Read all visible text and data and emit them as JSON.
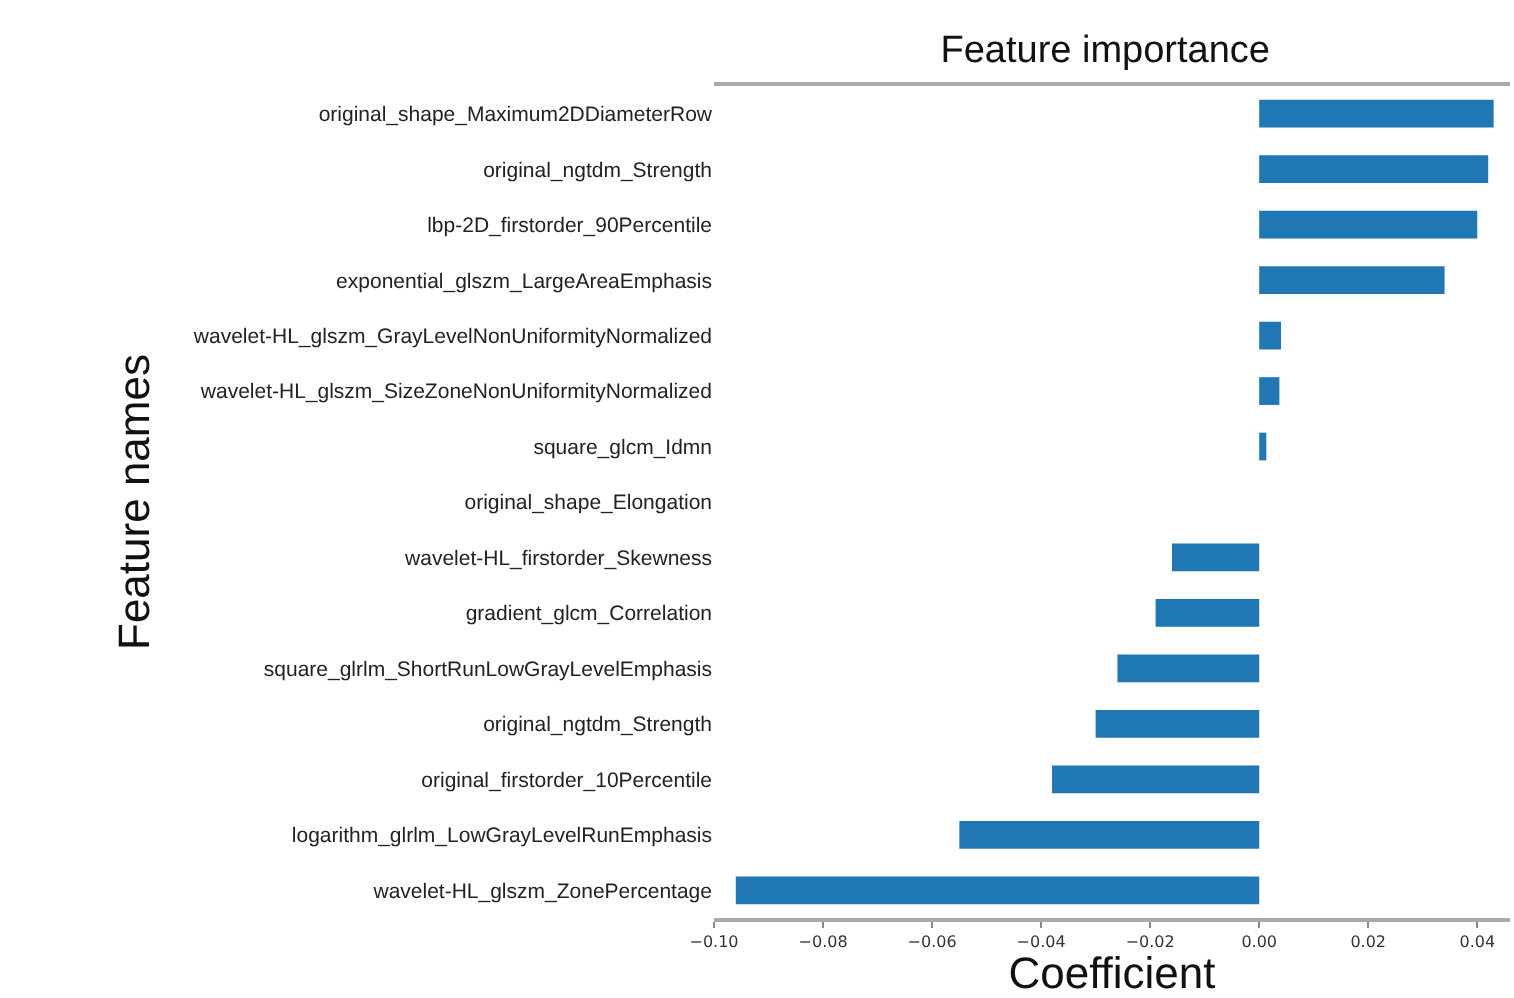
{
  "chart_data": {
    "type": "bar",
    "orientation": "horizontal",
    "title": "Feature importance",
    "xlabel": "Coefficient",
    "ylabel": "Feature names",
    "categories": [
      "original_shape_Maximum2DDiameterRow",
      "original_ngtdm_Strength",
      "lbp-2D_firstorder_90Percentile",
      "exponential_glszm_LargeAreaEmphasis",
      "wavelet-HL_glszm_GrayLevelNonUniformityNormalized",
      "wavelet-HL_glszm_SizeZoneNonUniformityNormalized",
      "square_glcm_Idmn",
      "original_shape_Elongation",
      "wavelet-HL_firstorder_Skewness",
      "gradient_glcm_Correlation",
      "square_glrlm_ShortRunLowGrayLevelEmphasis",
      "original_ngtdm_Strength",
      "original_firstorder_10Percentile",
      "logarithm_glrlm_LowGrayLevelRunEmphasis",
      "wavelet-HL_glszm_ZonePercentage"
    ],
    "values": [
      0.043,
      0.042,
      0.04,
      0.034,
      0.004,
      0.0037,
      0.0013,
      0,
      -0.016,
      -0.019,
      -0.026,
      -0.03,
      -0.038,
      -0.055,
      -0.096
    ],
    "color": "#1f77b4",
    "xlim": [
      -0.1,
      0.046
    ],
    "xticks": [
      {
        "value": -0.1,
        "label": "−0.10"
      },
      {
        "value": -0.08,
        "label": "−0.08"
      },
      {
        "value": -0.06,
        "label": "−0.06"
      },
      {
        "value": -0.04,
        "label": "−0.04"
      },
      {
        "value": -0.02,
        "label": "−0.02"
      },
      {
        "value": 0,
        "label": "0.00"
      },
      {
        "value": 0.02,
        "label": "0.02"
      },
      {
        "value": 0.04,
        "label": "0.04"
      }
    ],
    "grid": false
  }
}
